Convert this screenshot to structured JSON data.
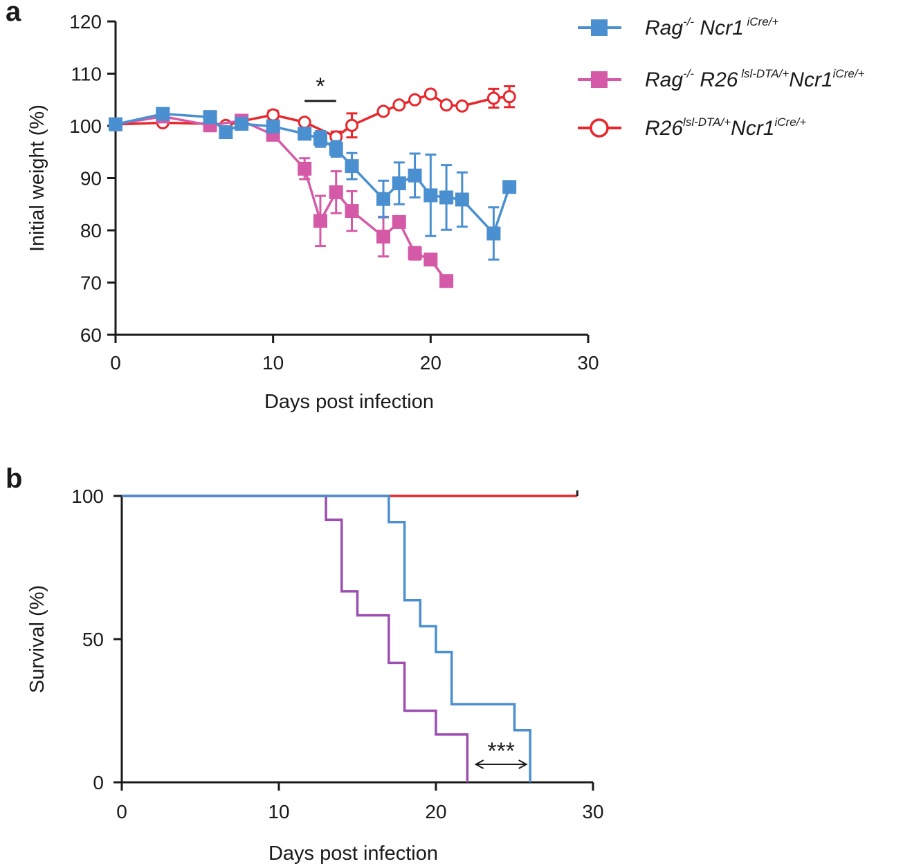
{
  "chart_data": [
    {
      "panel": "a",
      "type": "line",
      "xlabel": "Days post infection",
      "ylabel": "Initial weight (%)",
      "xlim": [
        0,
        30
      ],
      "ylim": [
        60,
        120
      ],
      "xticks": [
        0,
        10,
        20,
        30
      ],
      "yticks": [
        60,
        70,
        80,
        90,
        100,
        110,
        120
      ],
      "annotations": [
        {
          "text": "*",
          "x": [
            12,
            14
          ]
        }
      ],
      "legend": {
        "placement": "top-right"
      },
      "series": [
        {
          "key": "blue",
          "name": "Rag-/- Ncr1 iCre/+",
          "legend_parts": [
            [
              "Rag",
              ""
            ],
            [
              "-/-",
              "sup"
            ],
            [
              " Ncr1",
              ""
            ],
            [
              " iCre/+",
              "sup"
            ]
          ],
          "color": "#4a90d0",
          "marker": "square",
          "x": [
            0,
            3,
            6,
            7,
            8,
            10,
            12,
            13,
            14,
            15,
            17,
            18,
            19,
            20,
            21,
            22,
            24,
            25
          ],
          "y": [
            100.3,
            102.3,
            101.7,
            98.8,
            100.4,
            99.9,
            98.5,
            97.5,
            95.6,
            92.3,
            86.0,
            89.0,
            90.5,
            86.7,
            86.3,
            85.9,
            79.4,
            88.3
          ],
          "err": [
            0,
            0.8,
            0.8,
            0,
            0.8,
            1.0,
            1.0,
            1.5,
            1.5,
            2.5,
            3.5,
            4.0,
            4.2,
            7.8,
            6.2,
            5.2,
            5.0,
            0
          ]
        },
        {
          "key": "magenta",
          "name": "Rag-/- R26 lsl-DTA/+ Ncr1 iCre/+",
          "legend_parts": [
            [
              "Rag",
              ""
            ],
            [
              "-/-",
              "sup"
            ],
            [
              " R26",
              ""
            ],
            [
              " lsl-DTA/+",
              "sup"
            ],
            [
              "Ncr1",
              ""
            ],
            [
              "iCre/+",
              "sup"
            ]
          ],
          "color": "#d45aa8",
          "marker": "square",
          "x": [
            0,
            3,
            6,
            8,
            10,
            12,
            13,
            14,
            15,
            17,
            18,
            19,
            20,
            21
          ],
          "y": [
            100.3,
            101.8,
            100.1,
            101.0,
            98.3,
            91.8,
            81.8,
            87.3,
            83.7,
            78.8,
            81.6,
            75.6,
            74.4,
            70.3
          ],
          "err": [
            0,
            0,
            0,
            0.8,
            0.8,
            2.0,
            4.8,
            4.0,
            3.8,
            3.8,
            0,
            1.2,
            0,
            0
          ]
        },
        {
          "key": "red",
          "name": "R26 lsl-DTA/+ Ncr1 iCre/+",
          "legend_parts": [
            [
              "R26",
              ""
            ],
            [
              "lsl-DTA/+",
              "sup"
            ],
            [
              "Ncr1",
              ""
            ],
            [
              "iCre/+",
              "sup"
            ]
          ],
          "color": "#e8262b",
          "marker": "open-circle",
          "x": [
            0,
            3,
            6,
            7,
            8,
            10,
            12,
            14,
            15,
            17,
            18,
            19,
            20,
            21,
            22,
            24,
            25
          ],
          "y": [
            100.3,
            100.6,
            100.4,
            100.1,
            100.9,
            102.1,
            100.7,
            97.9,
            100.1,
            102.8,
            104.0,
            105.0,
            106.1,
            104.0,
            103.8,
            105.3,
            105.6
          ],
          "err": [
            0,
            0,
            0,
            0,
            0,
            0.8,
            0,
            1.0,
            2.3,
            0,
            0,
            0,
            0,
            0,
            0,
            1.8,
            2.0
          ]
        }
      ]
    },
    {
      "panel": "b",
      "type": "line",
      "xlabel": "Days post infection",
      "ylabel": "Survival (%)",
      "xlim": [
        0,
        30
      ],
      "ylim": [
        0,
        100
      ],
      "xticks": [
        0,
        10,
        20,
        30
      ],
      "yticks": [
        0,
        50,
        100
      ],
      "annotations": [
        {
          "text": "***",
          "x": [
            22.5,
            25.8
          ]
        }
      ],
      "series": [
        {
          "key": "red",
          "name": "R26 lsl-DTA/+ Ncr1 iCre/+",
          "color": "#e8262b",
          "step_x": [
            0,
            29
          ],
          "step_y": [
            100,
            100
          ]
        },
        {
          "key": "blue",
          "name": "Rag-/- Ncr1 iCre/+",
          "color": "#4a90d0",
          "step_x": [
            0,
            17,
            18,
            19,
            20,
            21,
            25,
            26
          ],
          "step_y": [
            100,
            90.9,
            63.6,
            54.5,
            45.5,
            27.3,
            18.2,
            0
          ]
        },
        {
          "key": "magenta",
          "name": "Rag-/- R26 lsl-DTA/+ Ncr1 iCre/+",
          "color": "#9b4fb0",
          "step_x": [
            0,
            13,
            14,
            15,
            17,
            18,
            20,
            22
          ],
          "step_y": [
            100,
            91.7,
            66.7,
            58.3,
            41.7,
            25.0,
            16.7,
            0
          ]
        }
      ]
    }
  ]
}
